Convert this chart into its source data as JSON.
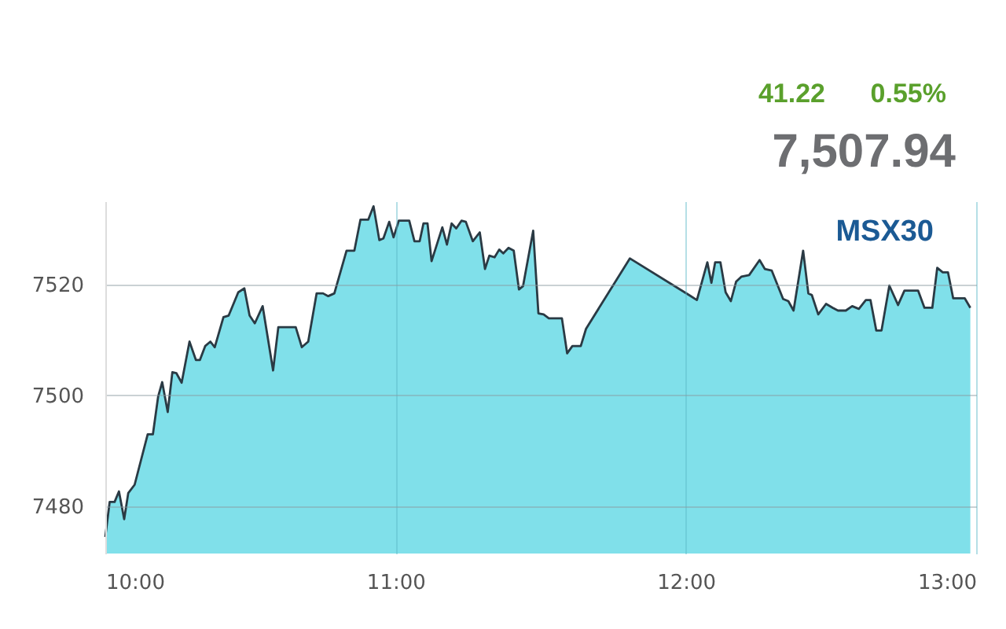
{
  "chart_data": {
    "type": "area",
    "title": "MSX30",
    "annotations": [
      "41.22",
      "0.55%",
      "7,507.94"
    ],
    "x": [
      10,
      10.015,
      10.032,
      10.047,
      10.065,
      10.079,
      10.101,
      10.146,
      10.164,
      10.182,
      10.196,
      10.215,
      10.231,
      10.245,
      10.263,
      10.29,
      10.312,
      10.326,
      10.344,
      10.362,
      10.377,
      10.407,
      10.425,
      10.458,
      10.479,
      10.497,
      10.515,
      10.542,
      10.578,
      10.596,
      10.656,
      10.677,
      10.699,
      10.728,
      10.75,
      10.768,
      10.789,
      10.831,
      10.858,
      10.879,
      10.906,
      10.924,
      10.944,
      10.958,
      10.978,
      10.993,
      11.011,
      11.047,
      11.065,
      11.083,
      11.096,
      11.11,
      11.124,
      11.161,
      11.177,
      11.193,
      11.209,
      11.227,
      11.242,
      11.266,
      11.29,
      11.308,
      11.323,
      11.341,
      11.357,
      11.371,
      11.389,
      11.407,
      11.425,
      11.439,
      11.474,
      11.492,
      11.51,
      11.528,
      11.573,
      11.591,
      11.609,
      11.638,
      11.656,
      11.807,
      12.011,
      12.038,
      12.074,
      12.088,
      12.101,
      12.119,
      12.137,
      12.155,
      12.173,
      12.191,
      12.218,
      12.254,
      12.272,
      12.296,
      12.335,
      12.353,
      12.371,
      12.404,
      12.422,
      12.434,
      12.456,
      12.483,
      12.506,
      12.524,
      12.551,
      12.573,
      12.596,
      12.62,
      12.636,
      12.656,
      12.674,
      12.701,
      12.731,
      12.753,
      12.8,
      12.822,
      12.849,
      12.866,
      12.885,
      12.903,
      12.921,
      12.961,
      12.98
    ],
    "series": [
      {
        "color": "#80e0ea",
        "values": [
          7474.5,
          7480.8,
          7480.8,
          7482.7,
          7477.7,
          7482.4,
          7483.9,
          7493,
          7493,
          7499.8,
          7502.4,
          7497,
          7504.2,
          7504,
          7502.3,
          7509.7,
          7506.4,
          7506.4,
          7508.9,
          7509.7,
          7508.7,
          7514.1,
          7514.4,
          7518.6,
          7519.3,
          7514.4,
          7513,
          7516.1,
          7504.5,
          7512.3,
          7512.3,
          7508.7,
          7509.7,
          7518.4,
          7518.4,
          7517.9,
          7518.4,
          7526.1,
          7526.1,
          7531.7,
          7531.7,
          7534.1,
          7528,
          7528.3,
          7531.3,
          7528.5,
          7531.5,
          7531.5,
          7527.8,
          7527.8,
          7531,
          7531,
          7524.2,
          7530.3,
          7527.2,
          7531,
          7530.1,
          7531.5,
          7531.3,
          7527.8,
          7529.4,
          7522.8,
          7525.2,
          7524.9,
          7526.3,
          7525.6,
          7526.6,
          7526.1,
          7519.1,
          7519.7,
          7529.7,
          7514.8,
          7514.6,
          7513.9,
          7513.9,
          7507.6,
          7508.9,
          7508.9,
          7512,
          7524.7,
          7518.1,
          7517.2,
          7524,
          7520.3,
          7524,
          7524,
          7518.6,
          7517,
          7520.5,
          7521.4,
          7521.7,
          7524.4,
          7522.8,
          7522.5,
          7517.4,
          7517,
          7515.3,
          7526.1,
          7518.4,
          7518.1,
          7514.6,
          7516.5,
          7515.8,
          7515.3,
          7515.3,
          7516.1,
          7515.6,
          7517.2,
          7517.2,
          7511.7,
          7511.7,
          7519.8,
          7516.3,
          7518.9,
          7518.9,
          7515.8,
          7515.8,
          7523,
          7522.2,
          7522.2,
          7517.5,
          7517.5,
          7515.8
        ]
      }
    ],
    "xlim": [
      10,
      13
    ],
    "xticks": [
      {
        "value": 10,
        "label": "10:00"
      },
      {
        "value": 11,
        "label": "11:00"
      },
      {
        "value": 12,
        "label": "12:00"
      },
      {
        "value": 13,
        "label": "13:00"
      }
    ],
    "ylim": [
      7471.5,
      7535
    ],
    "yticks": [
      7480,
      7500,
      7520
    ],
    "grid": true
  }
}
